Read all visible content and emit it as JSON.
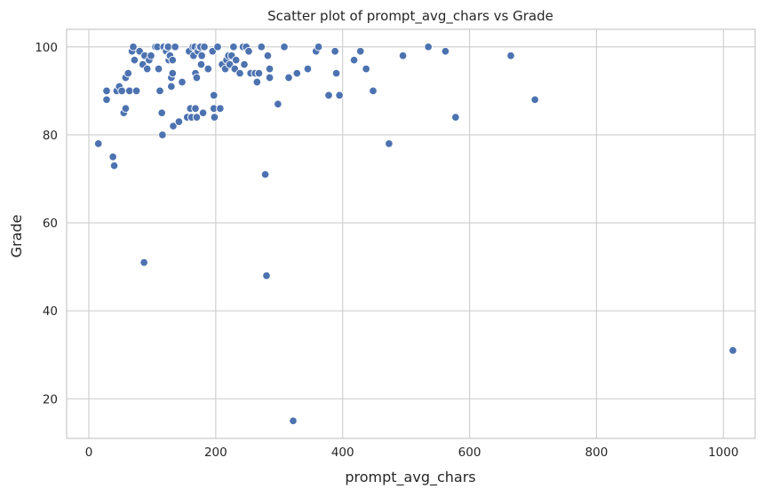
{
  "chart_data": {
    "type": "scatter",
    "title": "Scatter plot of prompt_avg_chars vs Grade",
    "xlabel": "prompt_avg_chars",
    "ylabel": "Grade",
    "xlim": [
      -35,
      1050
    ],
    "ylim": [
      11,
      104
    ],
    "x_ticks": [
      0,
      200,
      400,
      600,
      800,
      1000
    ],
    "y_ticks": [
      20,
      40,
      60,
      80,
      100
    ],
    "grid": true,
    "point_color": "#4c72b0",
    "series": [
      {
        "points": [
          [
            15,
            78
          ],
          [
            28,
            90
          ],
          [
            28,
            88
          ],
          [
            38,
            75
          ],
          [
            40,
            73
          ],
          [
            44,
            90
          ],
          [
            48,
            91
          ],
          [
            52,
            90
          ],
          [
            55,
            85
          ],
          [
            58,
            86
          ],
          [
            58,
            93
          ],
          [
            62,
            94
          ],
          [
            64,
            90
          ],
          [
            68,
            99
          ],
          [
            70,
            100
          ],
          [
            72,
            97
          ],
          [
            75,
            90
          ],
          [
            80,
            99
          ],
          [
            85,
            96
          ],
          [
            87,
            51
          ],
          [
            88,
            98
          ],
          [
            92,
            95
          ],
          [
            95,
            97
          ],
          [
            98,
            98
          ],
          [
            105,
            100
          ],
          [
            108,
            100
          ],
          [
            110,
            95
          ],
          [
            112,
            90
          ],
          [
            115,
            85
          ],
          [
            116,
            80
          ],
          [
            118,
            100
          ],
          [
            122,
            99
          ],
          [
            124,
            100
          ],
          [
            125,
            100
          ],
          [
            126,
            97
          ],
          [
            127,
            98
          ],
          [
            128,
            98
          ],
          [
            130,
            91
          ],
          [
            130,
            93
          ],
          [
            132,
            97
          ],
          [
            132,
            94
          ],
          [
            133,
            82
          ],
          [
            136,
            100
          ],
          [
            142,
            83
          ],
          [
            147,
            92
          ],
          [
            155,
            84
          ],
          [
            158,
            99
          ],
          [
            160,
            86
          ],
          [
            162,
            84
          ],
          [
            164,
            100
          ],
          [
            165,
            98
          ],
          [
            167,
            100
          ],
          [
            168,
            86
          ],
          [
            168,
            94
          ],
          [
            170,
            84
          ],
          [
            170,
            93
          ],
          [
            172,
            99
          ],
          [
            174,
            100
          ],
          [
            176,
            100
          ],
          [
            177,
            96
          ],
          [
            178,
            98
          ],
          [
            180,
            85
          ],
          [
            182,
            100
          ],
          [
            188,
            95
          ],
          [
            195,
            99
          ],
          [
            197,
            89
          ],
          [
            197,
            86
          ],
          [
            198,
            84
          ],
          [
            203,
            100
          ],
          [
            207,
            86
          ],
          [
            210,
            96
          ],
          [
            215,
            95
          ],
          [
            217,
            97
          ],
          [
            220,
            98
          ],
          [
            222,
            96
          ],
          [
            225,
            98
          ],
          [
            228,
            100
          ],
          [
            230,
            95
          ],
          [
            232,
            97
          ],
          [
            238,
            94
          ],
          [
            243,
            100
          ],
          [
            245,
            96
          ],
          [
            248,
            100
          ],
          [
            252,
            99
          ],
          [
            255,
            94
          ],
          [
            262,
            94
          ],
          [
            265,
            92
          ],
          [
            268,
            94
          ],
          [
            272,
            100
          ],
          [
            278,
            71
          ],
          [
            280,
            48
          ],
          [
            282,
            98
          ],
          [
            285,
            95
          ],
          [
            285,
            93
          ],
          [
            298,
            87
          ],
          [
            308,
            100
          ],
          [
            315,
            93
          ],
          [
            322,
            15
          ],
          [
            328,
            94
          ],
          [
            345,
            95
          ],
          [
            358,
            99
          ],
          [
            362,
            100
          ],
          [
            378,
            89
          ],
          [
            388,
            99
          ],
          [
            390,
            94
          ],
          [
            395,
            89
          ],
          [
            418,
            97
          ],
          [
            428,
            99
          ],
          [
            437,
            95
          ],
          [
            448,
            90
          ],
          [
            473,
            78
          ],
          [
            495,
            98
          ],
          [
            535,
            100
          ],
          [
            562,
            99
          ],
          [
            578,
            84
          ],
          [
            665,
            98
          ],
          [
            703,
            88
          ],
          [
            1015,
            31
          ]
        ]
      }
    ]
  }
}
